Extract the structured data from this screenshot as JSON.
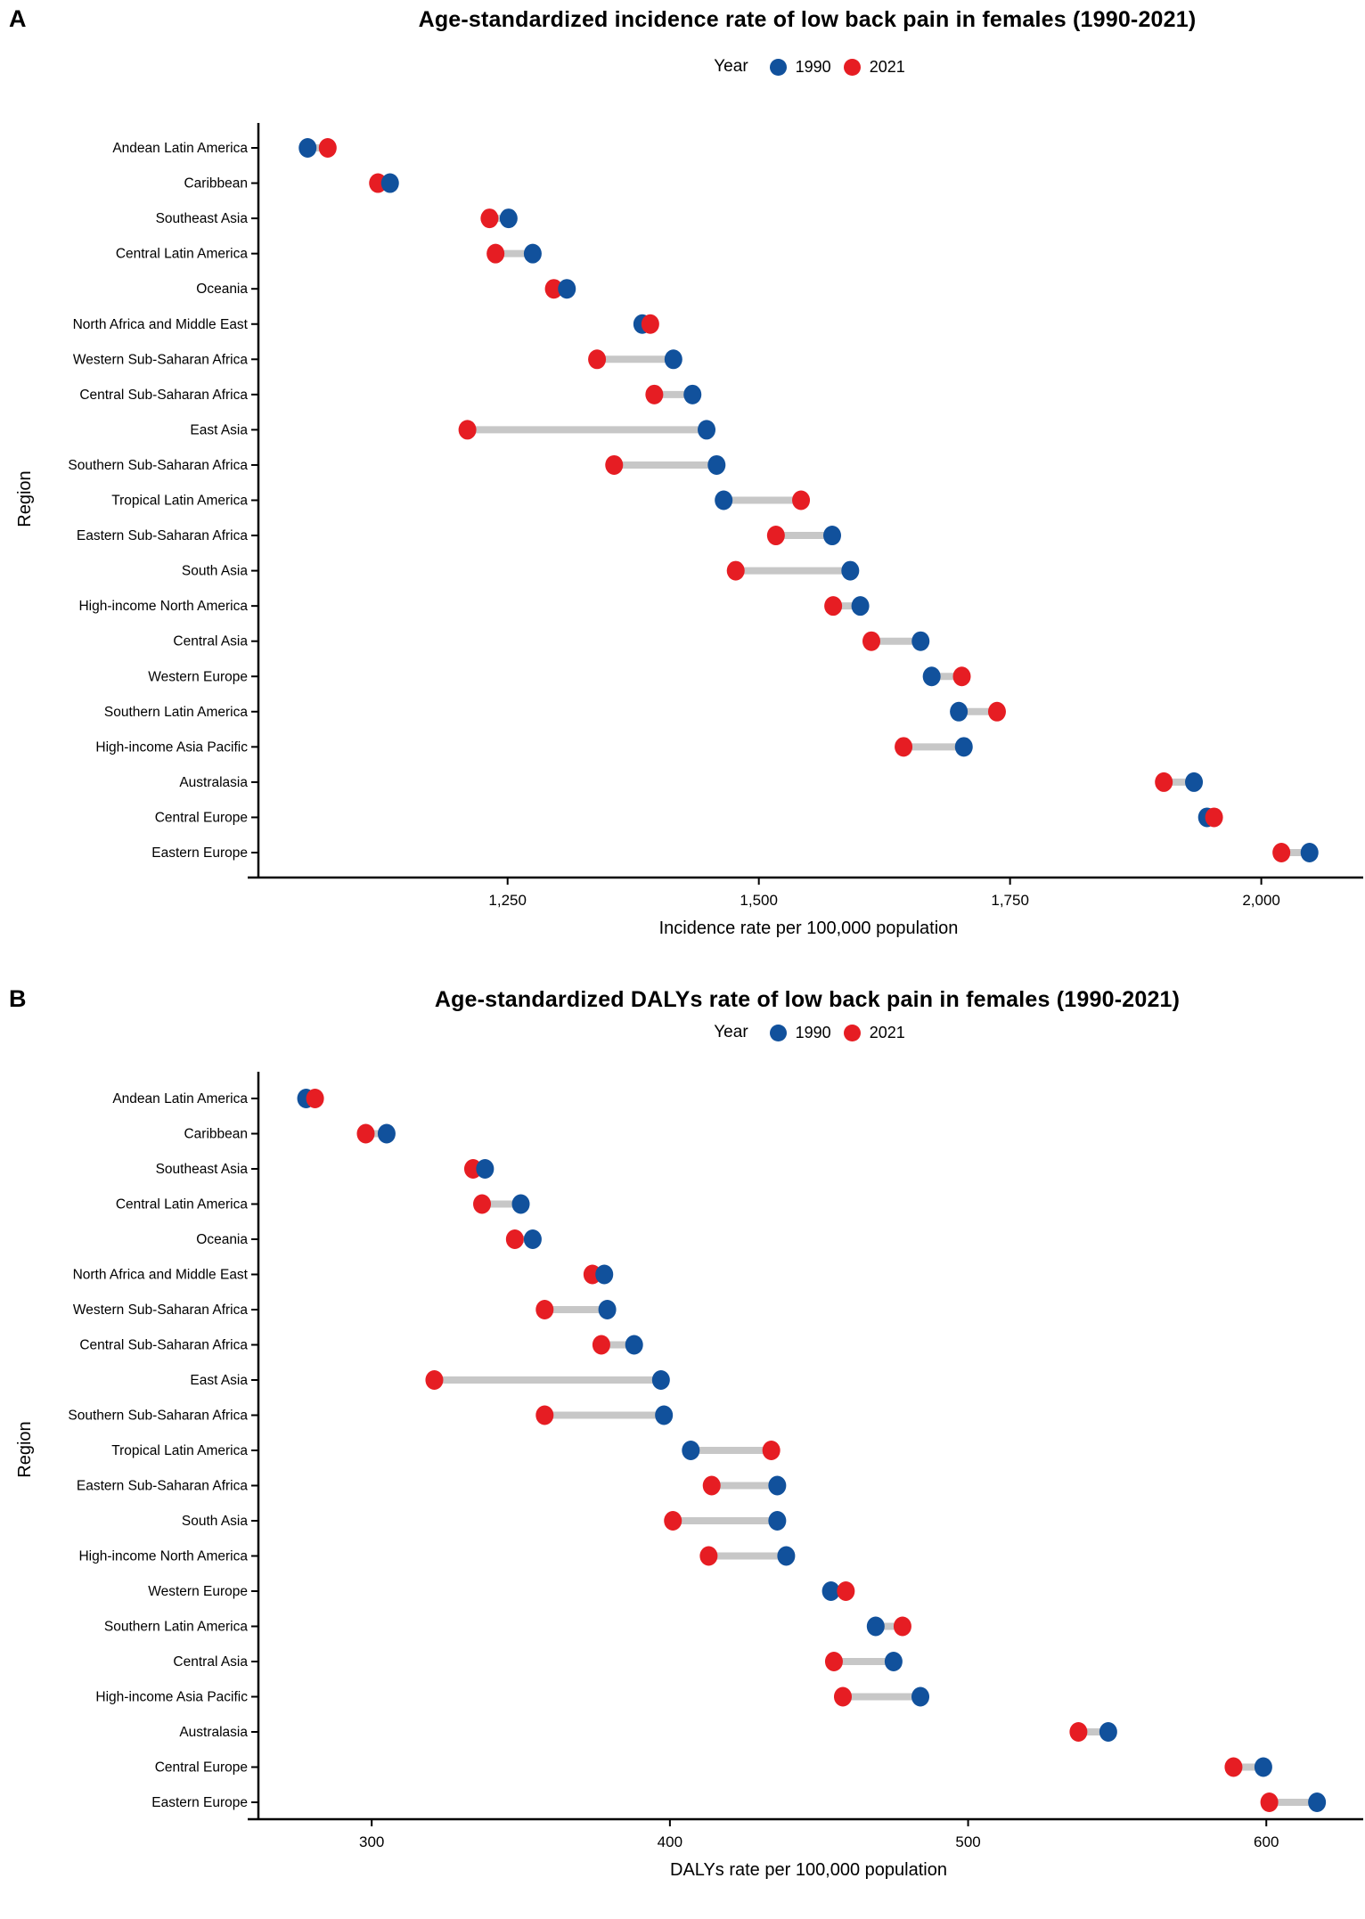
{
  "figure_title_area": {
    "legend": {
      "title": "Year",
      "entries": [
        {
          "label": "1990",
          "color": "#11519c"
        },
        {
          "label": "2021",
          "color": "#e61d23"
        }
      ]
    }
  },
  "colors": {
    "year_1990": "#11519c",
    "year_2021": "#e61d23",
    "connector": "#c7c7c7",
    "axis": "#000000",
    "background": "#ffffff"
  },
  "chart_data": [
    {
      "type": "scatter",
      "mark": "dumbbell",
      "panel_label": "A",
      "title": "Age-standardized incidence rate of low back pain in females (1990-2021)",
      "legend_title": "Year",
      "xlabel": "Incidence rate per 100,000 population",
      "ylabel": "Region",
      "xlim": [
        1002,
        2097
      ],
      "x_ticks": [
        1250,
        1500,
        1750,
        2000
      ],
      "x_tick_labels": [
        "1,250",
        "1,500",
        "1,750",
        "2,000"
      ],
      "grid": false,
      "legend_position": "top-center",
      "series": [
        {
          "name": "1990",
          "color": "#11519c"
        },
        {
          "name": "2021",
          "color": "#e61d23"
        }
      ],
      "categories": [
        "Andean Latin America",
        "Caribbean",
        "Southeast Asia",
        "Central Latin America",
        "Oceania",
        "North Africa and Middle East",
        "Western Sub-Saharan Africa",
        "Central Sub-Saharan Africa",
        "East Asia",
        "Southern Sub-Saharan Africa",
        "Tropical Latin America",
        "Eastern Sub-Saharan Africa",
        "South Asia",
        "High-income North America",
        "Central Asia",
        "Western Europe",
        "Southern Latin America",
        "High-income Asia Pacific",
        "Australasia",
        "Central Europe",
        "Eastern Europe"
      ],
      "values_1990": [
        1051,
        1133,
        1251,
        1275,
        1309,
        1384,
        1415,
        1434,
        1448,
        1458,
        1465,
        1573,
        1591,
        1601,
        1661,
        1672,
        1699,
        1704,
        1933,
        1946,
        2048
      ],
      "values_2021": [
        1071,
        1121,
        1232,
        1238,
        1296,
        1392,
        1339,
        1396,
        1210,
        1356,
        1542,
        1517,
        1477,
        1574,
        1612,
        1702,
        1737,
        1644,
        1903,
        1953,
        2020
      ]
    },
    {
      "type": "scatter",
      "mark": "dumbbell",
      "panel_label": "B",
      "title": "Age-standardized DALYs rate of low back pain in females (1990-2021)",
      "legend_title": "Year",
      "xlabel": "DALYs rate per 100,000 population",
      "ylabel": "Region",
      "xlim": [
        262,
        631
      ],
      "x_ticks": [
        300,
        400,
        500,
        600
      ],
      "x_tick_labels": [
        "300",
        "400",
        "500",
        "600"
      ],
      "grid": false,
      "legend_position": "top-center",
      "series": [
        {
          "name": "1990",
          "color": "#11519c"
        },
        {
          "name": "2021",
          "color": "#e61d23"
        }
      ],
      "categories": [
        "Andean Latin America",
        "Caribbean",
        "Southeast Asia",
        "Central Latin America",
        "Oceania",
        "North Africa and Middle East",
        "Western Sub-Saharan Africa",
        "Central Sub-Saharan Africa",
        "East Asia",
        "Southern Sub-Saharan Africa",
        "Tropical Latin America",
        "Eastern Sub-Saharan Africa",
        "South Asia",
        "High-income North America",
        "Western Europe",
        "Southern Latin America",
        "Central Asia",
        "High-income Asia Pacific",
        "Australasia",
        "Central Europe",
        "Eastern Europe"
      ],
      "values_1990": [
        278,
        305,
        338,
        350,
        354,
        378,
        379,
        388,
        397,
        398,
        407,
        436,
        436,
        439,
        454,
        469,
        475,
        484,
        547,
        599,
        617
      ],
      "values_2021": [
        281,
        298,
        334,
        337,
        348,
        374,
        358,
        377,
        321,
        358,
        434,
        414,
        401,
        413,
        459,
        478,
        455,
        458,
        537,
        589,
        601
      ]
    }
  ]
}
